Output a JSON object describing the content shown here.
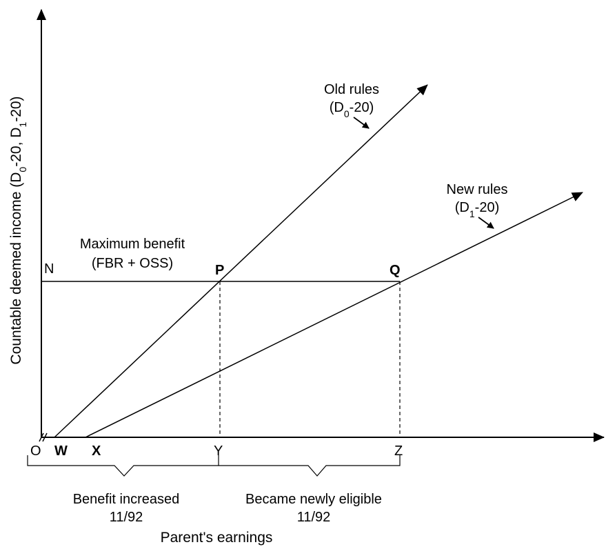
{
  "axes": {
    "y_title": {
      "pre": "Countable deemed income (D",
      "sub0": "0",
      "mid": "-20, D",
      "sub1": "1",
      "post": "-20)"
    },
    "x_title": "Parent's earnings"
  },
  "points": {
    "origin": "O",
    "w": "W",
    "x": "X",
    "y": "Y",
    "z": "Z",
    "n": "N",
    "p": "P",
    "q": "Q"
  },
  "annotations": {
    "max_benefit": {
      "line1": "Maximum benefit",
      "line2": "(FBR + OSS)"
    },
    "old_rules": {
      "title": "Old rules",
      "formula_pre": "(D",
      "formula_sub": "0",
      "formula_post": "-20)"
    },
    "new_rules": {
      "title": "New rules",
      "formula_pre": "(D",
      "formula_sub": "1",
      "formula_post": "-20)"
    },
    "benefit_increased": {
      "line1": "Benefit increased",
      "line2": "11/92"
    },
    "newly_eligible": {
      "line1": "Became newly eligible",
      "line2": "11/92"
    }
  },
  "colors": {
    "ink": "#000000",
    "background": "#ffffff"
  }
}
